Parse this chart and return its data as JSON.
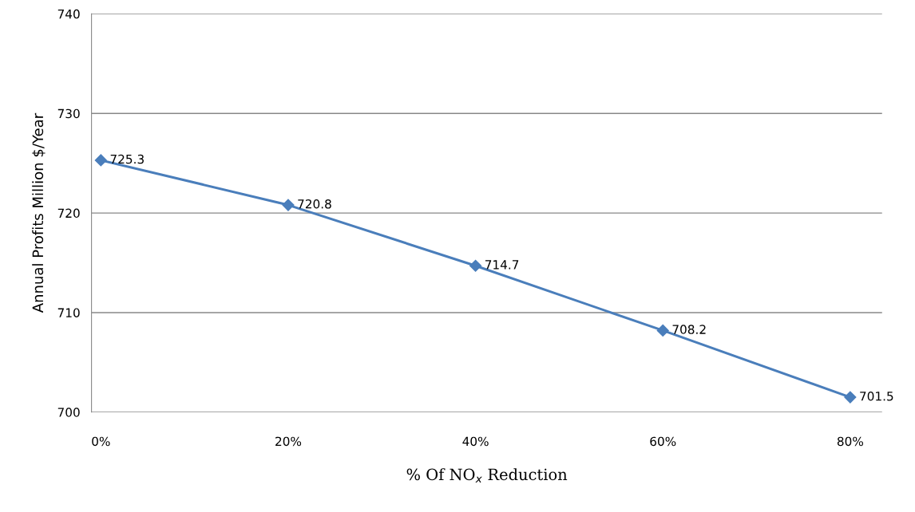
{
  "chart_data": {
    "type": "line",
    "xlabel": "% Of NO$_{x}$ Reduction",
    "ylabel": "Annual Profits Million $/Year",
    "categories": [
      "0%",
      "20%",
      "40%",
      "60%",
      "80%"
    ],
    "series": [
      {
        "color": "#4a7ebb",
        "values": [
          725.3,
          720.8,
          714.7,
          708.2,
          701.5
        ]
      }
    ],
    "ylim": [
      700,
      740
    ],
    "yticks": [
      700,
      710,
      720,
      730,
      740
    ],
    "grid": "y",
    "marker": "diamond",
    "line_style": "solid",
    "data_labels": true,
    "legend": false
  }
}
